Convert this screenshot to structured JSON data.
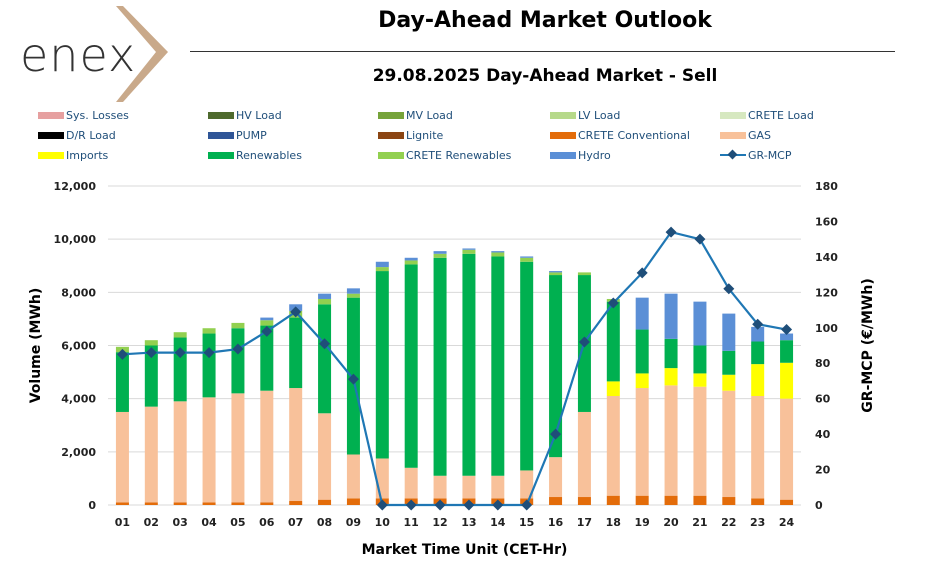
{
  "header": {
    "logo_text": "enex",
    "title": "Day-Ahead Market Outlook",
    "subtitle": "29.08.2025  Day-Ahead Market - Sell"
  },
  "legend": [
    {
      "label": "Sys. Losses",
      "color": "#e6a0a0"
    },
    {
      "label": "HV Load",
      "color": "#4e6a2e"
    },
    {
      "label": "MV Load",
      "color": "#76a33a"
    },
    {
      "label": "LV Load",
      "color": "#b6d98a"
    },
    {
      "label": "CRETE Load",
      "color": "#d6e8c0"
    },
    {
      "label": "D/R Load",
      "color": "#000000"
    },
    {
      "label": "PUMP",
      "color": "#2f5597"
    },
    {
      "label": "Lignite",
      "color": "#8b4513"
    },
    {
      "label": "CRETE Conventional",
      "color": "#e36c0a"
    },
    {
      "label": "GAS",
      "color": "#f8c19a"
    },
    {
      "label": "Imports",
      "color": "#ffff00"
    },
    {
      "label": "Renewables",
      "color": "#00b050"
    },
    {
      "label": "CRETE Renewables",
      "color": "#92d050"
    },
    {
      "label": "Hydro",
      "color": "#5b8fd6"
    },
    {
      "label": "GR-MCP",
      "color": "#1f4e79"
    }
  ],
  "chart_data": {
    "type": "bar",
    "stacked": true,
    "categories": [
      "01",
      "02",
      "03",
      "04",
      "05",
      "06",
      "07",
      "08",
      "09",
      "10",
      "11",
      "12",
      "13",
      "14",
      "15",
      "16",
      "17",
      "18",
      "19",
      "20",
      "21",
      "22",
      "23",
      "24"
    ],
    "xlabel": "Market Time Unit (CET-Hr)",
    "ylabel": "Volume (MWh)",
    "ylabel_right": "GR-MCP (€/MWh)",
    "ylim": [
      0,
      12000
    ],
    "y_ticks": [
      0,
      2000,
      4000,
      6000,
      8000,
      10000,
      12000
    ],
    "y_tick_labels": [
      "0",
      "2,000",
      "4,000",
      "6,000",
      "8,000",
      "10,000",
      "12,000"
    ],
    "ylim_right": [
      0,
      180
    ],
    "y_ticks_right": [
      0,
      20,
      40,
      60,
      80,
      100,
      120,
      140,
      160,
      180
    ],
    "series": [
      {
        "name": "CRETE Conventional",
        "color": "#e36c0a",
        "values": [
          100,
          100,
          100,
          100,
          100,
          100,
          150,
          200,
          250,
          250,
          250,
          250,
          250,
          250,
          250,
          300,
          300,
          350,
          350,
          350,
          350,
          300,
          250,
          200
        ]
      },
      {
        "name": "GAS",
        "color": "#f8c19a",
        "values": [
          3400,
          3600,
          3800,
          3950,
          4100,
          4200,
          4250,
          3250,
          1650,
          1500,
          1150,
          850,
          850,
          850,
          1050,
          1500,
          3200,
          3750,
          4050,
          4150,
          4100,
          4000,
          3850,
          3800
        ]
      },
      {
        "name": "Imports",
        "color": "#ffff00",
        "values": [
          0,
          0,
          0,
          0,
          0,
          0,
          0,
          0,
          0,
          0,
          0,
          0,
          0,
          0,
          0,
          0,
          0,
          550,
          550,
          650,
          500,
          600,
          1200,
          1350
        ]
      },
      {
        "name": "Renewables",
        "color": "#00b050",
        "values": [
          2250,
          2300,
          2400,
          2400,
          2450,
          2450,
          2650,
          4100,
          5900,
          7050,
          7650,
          8200,
          8350,
          8250,
          7850,
          6850,
          5150,
          3000,
          1650,
          1100,
          1050,
          900,
          850,
          850
        ]
      },
      {
        "name": "CRETE Renewables",
        "color": "#92d050",
        "values": [
          200,
          200,
          200,
          200,
          200,
          200,
          250,
          200,
          150,
          150,
          150,
          150,
          150,
          150,
          150,
          100,
          100,
          100,
          0,
          0,
          0,
          0,
          0,
          0
        ]
      },
      {
        "name": "Hydro",
        "color": "#5b8fd6",
        "values": [
          0,
          0,
          0,
          0,
          0,
          100,
          250,
          200,
          200,
          200,
          100,
          100,
          50,
          50,
          50,
          50,
          0,
          0,
          1200,
          1700,
          1650,
          1400,
          550,
          250
        ]
      }
    ],
    "line": {
      "name": "GR-MCP",
      "axis": "right",
      "color": "#1f77b4",
      "marker_color": "#1f4e79",
      "values": [
        85,
        86,
        86,
        86,
        88,
        98,
        109,
        91,
        71,
        0,
        0,
        0,
        0,
        0,
        0,
        40,
        92,
        114,
        131,
        154,
        150,
        122,
        102,
        99
      ]
    }
  }
}
